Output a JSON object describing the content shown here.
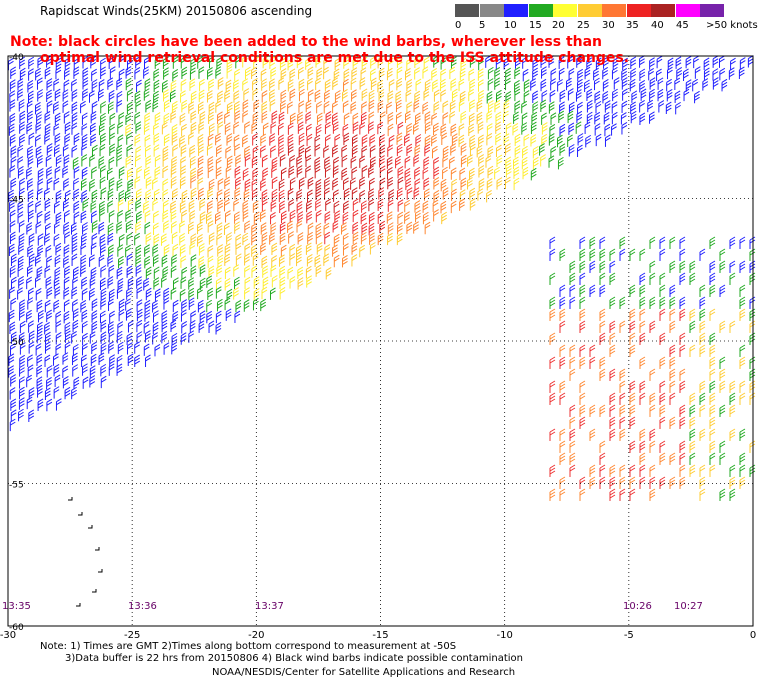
{
  "title": "Rapidscat Winds(25KM) 20150806 ascending",
  "note": {
    "line1": "Note: black circles have been added to the wind barbs, wherever less than",
    "line2": "optimal wind retrieval conditions are met due to the ISS attitude changes."
  },
  "colorbar": {
    "labels": [
      "0",
      "5",
      "10",
      "15",
      "20",
      "25",
      "30",
      "35",
      "40",
      "45",
      ">50 knots"
    ],
    "colors": [
      "#555555",
      "#888888",
      "#2020ff",
      "#22aa22",
      "#ffff33",
      "#ffcc33",
      "#ff7733",
      "#ee2222",
      "#aa2222",
      "#ff00ff",
      "#7722aa"
    ]
  },
  "map": {
    "lat_labels": [
      "-40",
      "-45",
      "-50",
      "-55",
      "-60"
    ],
    "lon_labels": [
      "-30",
      "-25",
      "-20",
      "-15",
      "-10",
      "-5",
      "0"
    ],
    "time_labels": [
      "13:35",
      "13:36",
      "13:37",
      "10:26",
      "10:27"
    ],
    "time_color": "#660066"
  },
  "footer": {
    "line1": "Note: 1) Times are GMT 2)Times along bottom correspond to measurement at -50S",
    "line2": "3)Data buffer is 22 hrs from 20150806 4) Black wind barbs indicate possible contamination",
    "line3": "NOAA/NESDIS/Center for Satellite Applications and Research"
  }
}
